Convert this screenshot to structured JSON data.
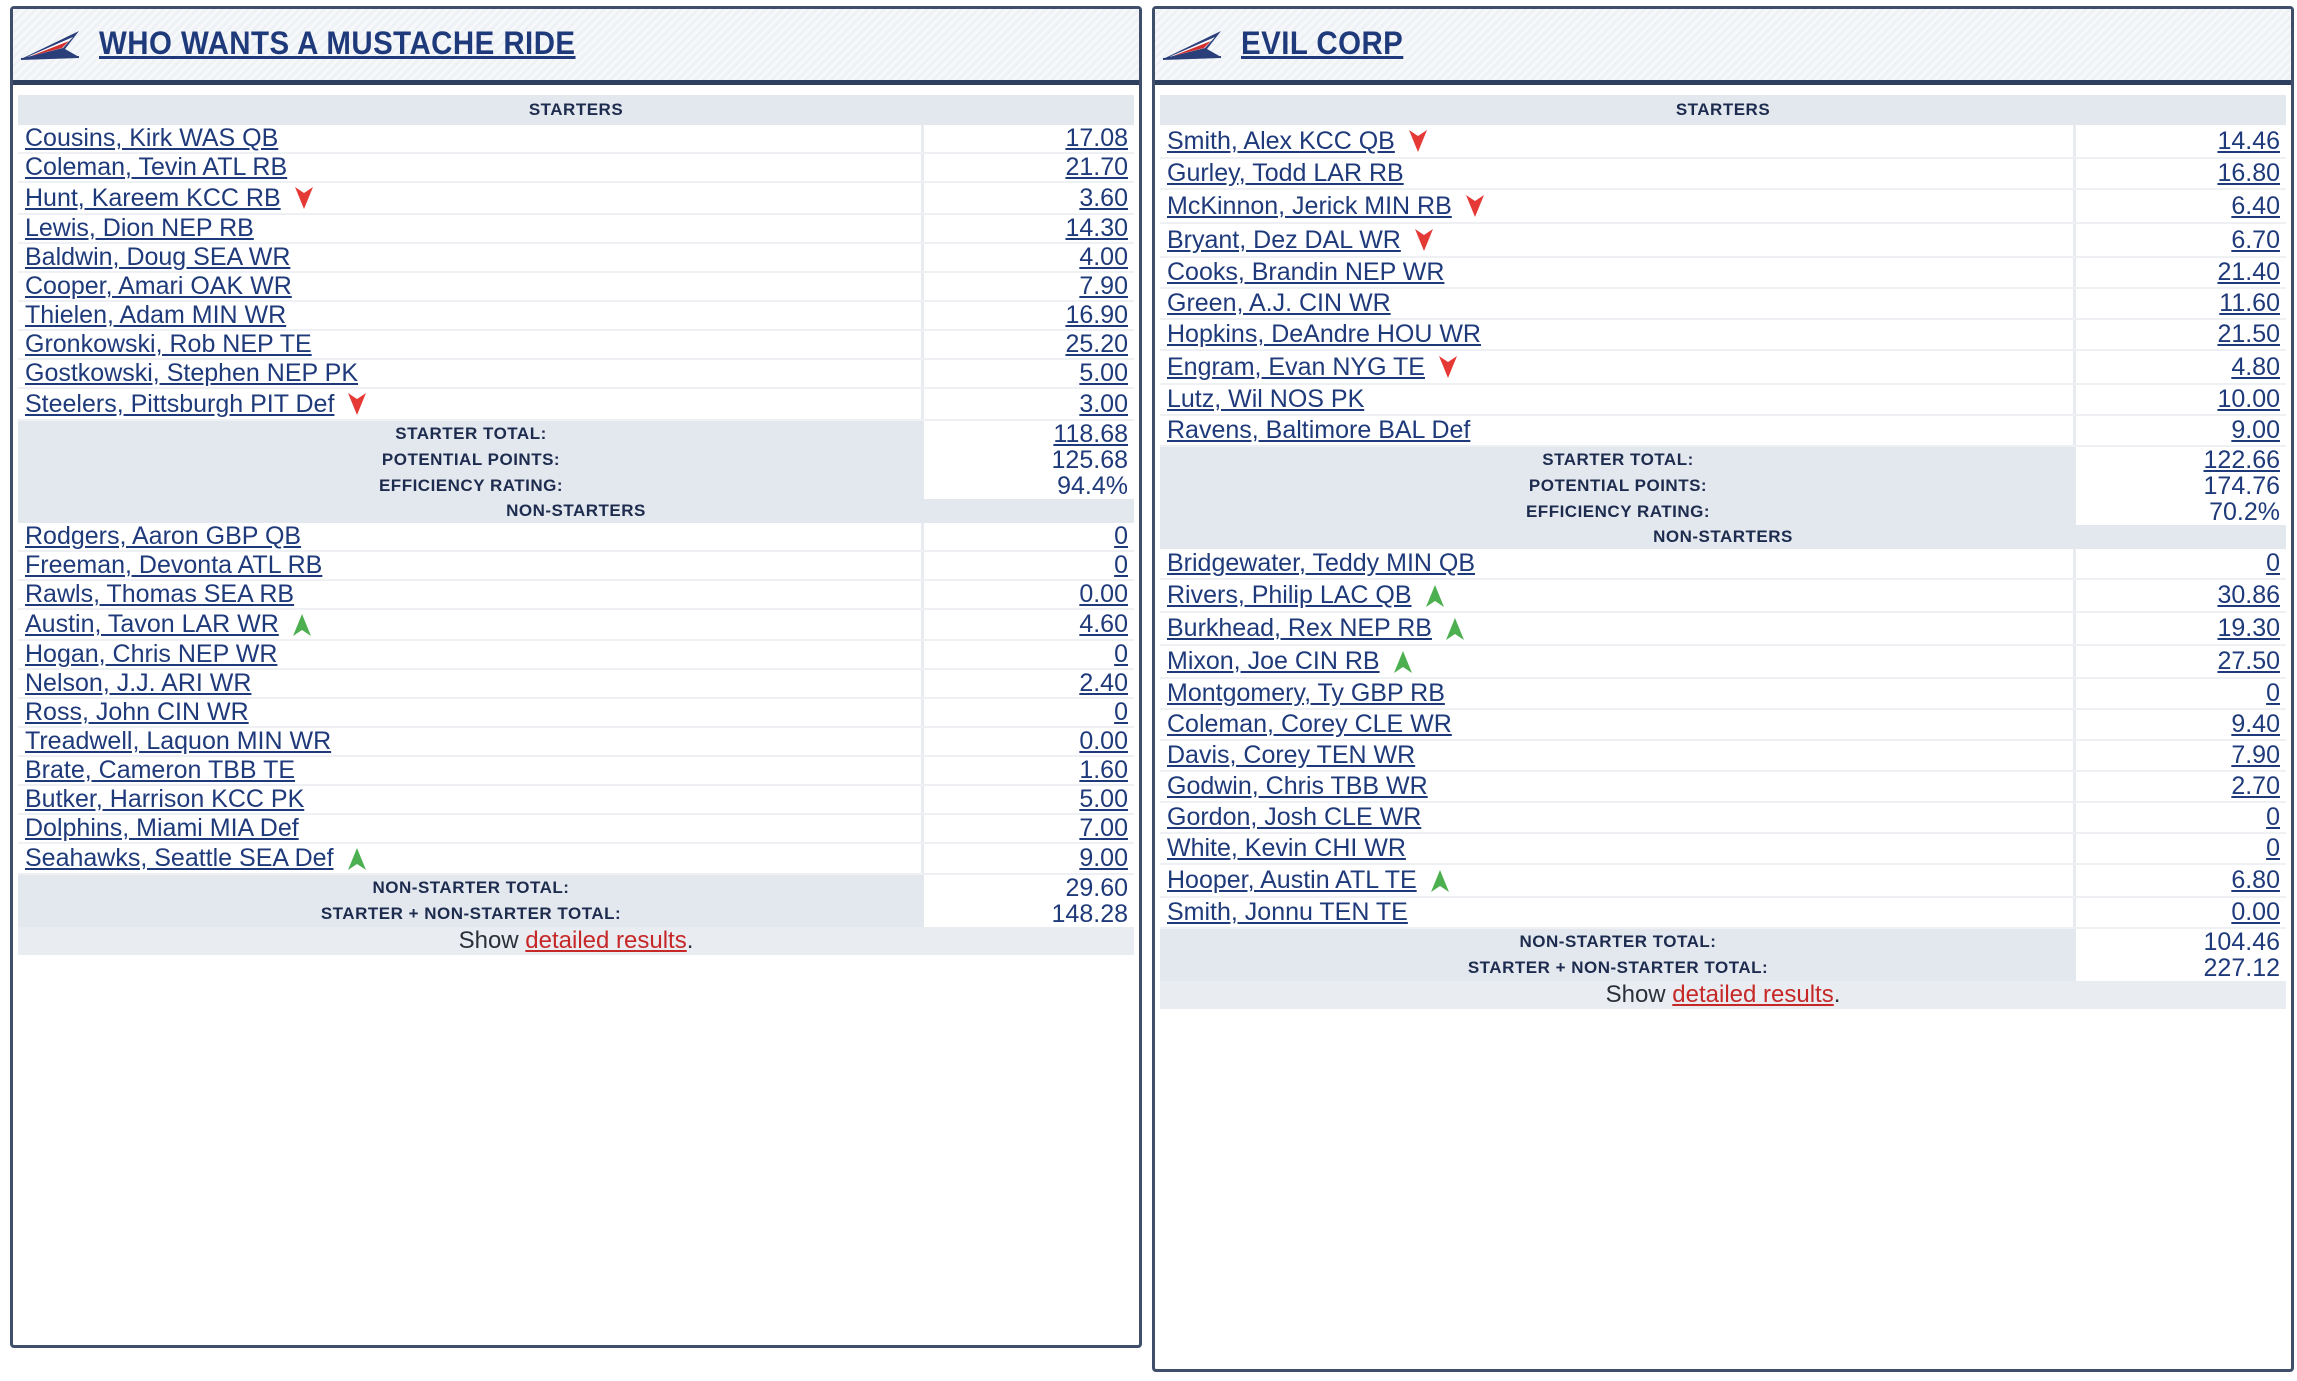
{
  "left": {
    "team_name": "WHO WANTS A MUSTACHE RIDE",
    "starters_label": "STARTERS",
    "starters": [
      {
        "name": "Cousins, Kirk WAS QB",
        "pts": "17.08",
        "trend": ""
      },
      {
        "name": "Coleman, Tevin ATL RB",
        "pts": "21.70",
        "trend": ""
      },
      {
        "name": "Hunt, Kareem KCC RB",
        "pts": "3.60",
        "trend": "down"
      },
      {
        "name": "Lewis, Dion NEP RB",
        "pts": "14.30",
        "trend": ""
      },
      {
        "name": "Baldwin, Doug SEA WR",
        "pts": "4.00",
        "trend": ""
      },
      {
        "name": "Cooper, Amari OAK WR",
        "pts": "7.90",
        "trend": ""
      },
      {
        "name": "Thielen, Adam MIN WR",
        "pts": "16.90",
        "trend": ""
      },
      {
        "name": "Gronkowski, Rob NEP TE",
        "pts": "25.20",
        "trend": ""
      },
      {
        "name": "Gostkowski, Stephen NEP PK",
        "pts": "5.00",
        "trend": ""
      },
      {
        "name": "Steelers, Pittsburgh PIT Def",
        "pts": "3.00",
        "trend": "down"
      }
    ],
    "starter_total_label": "STARTER TOTAL:",
    "starter_total": "118.68",
    "potential_label": "POTENTIAL POINTS:",
    "potential": "125.68",
    "efficiency_label": "EFFICIENCY RATING:",
    "efficiency": "94.4%",
    "nonstarters_label": "NON-STARTERS",
    "nonstarters": [
      {
        "name": "Rodgers, Aaron GBP QB",
        "pts": "0",
        "trend": ""
      },
      {
        "name": "Freeman, Devonta ATL RB",
        "pts": "0",
        "trend": ""
      },
      {
        "name": "Rawls, Thomas SEA RB",
        "pts": "0.00",
        "trend": ""
      },
      {
        "name": "Austin, Tavon LAR WR",
        "pts": "4.60",
        "trend": "up"
      },
      {
        "name": "Hogan, Chris NEP WR",
        "pts": "0",
        "trend": ""
      },
      {
        "name": "Nelson, J.J. ARI WR",
        "pts": "2.40",
        "trend": ""
      },
      {
        "name": "Ross, John CIN WR",
        "pts": "0",
        "trend": ""
      },
      {
        "name": "Treadwell, Laquon MIN WR",
        "pts": "0.00",
        "trend": ""
      },
      {
        "name": "Brate, Cameron TBB TE",
        "pts": "1.60",
        "trend": ""
      },
      {
        "name": "Butker, Harrison KCC PK",
        "pts": "5.00",
        "trend": ""
      },
      {
        "name": "Dolphins, Miami MIA Def",
        "pts": "7.00",
        "trend": ""
      },
      {
        "name": "Seahawks, Seattle SEA Def",
        "pts": "9.00",
        "trend": "up"
      }
    ],
    "nonstarter_total_label": "NON-STARTER TOTAL:",
    "nonstarter_total": "29.60",
    "combined_label": "STARTER + NON-STARTER TOTAL:",
    "combined": "148.28",
    "show_prefix": "Show ",
    "show_link": "detailed results",
    "show_suffix": "."
  },
  "right": {
    "team_name": "EVIL CORP",
    "starters_label": "STARTERS",
    "starters": [
      {
        "name": "Smith, Alex KCC QB",
        "pts": "14.46",
        "trend": "down"
      },
      {
        "name": "Gurley, Todd LAR RB",
        "pts": "16.80",
        "trend": ""
      },
      {
        "name": "McKinnon, Jerick MIN RB",
        "pts": "6.40",
        "trend": "down"
      },
      {
        "name": "Bryant, Dez DAL WR",
        "pts": "6.70",
        "trend": "down"
      },
      {
        "name": "Cooks, Brandin NEP WR",
        "pts": "21.40",
        "trend": ""
      },
      {
        "name": "Green, A.J. CIN WR",
        "pts": "11.60",
        "trend": ""
      },
      {
        "name": "Hopkins, DeAndre HOU WR",
        "pts": "21.50",
        "trend": ""
      },
      {
        "name": "Engram, Evan NYG TE",
        "pts": "4.80",
        "trend": "down"
      },
      {
        "name": "Lutz, Wil NOS PK",
        "pts": "10.00",
        "trend": ""
      },
      {
        "name": "Ravens, Baltimore BAL Def",
        "pts": "9.00",
        "trend": ""
      }
    ],
    "starter_total_label": "STARTER TOTAL:",
    "starter_total": "122.66",
    "potential_label": "POTENTIAL POINTS:",
    "potential": "174.76",
    "efficiency_label": "EFFICIENCY RATING:",
    "efficiency": "70.2%",
    "nonstarters_label": "NON-STARTERS",
    "nonstarters": [
      {
        "name": "Bridgewater, Teddy MIN QB",
        "pts": "0",
        "trend": ""
      },
      {
        "name": "Rivers, Philip LAC QB",
        "pts": "30.86",
        "trend": "up"
      },
      {
        "name": "Burkhead, Rex NEP RB",
        "pts": "19.30",
        "trend": "up"
      },
      {
        "name": "Mixon, Joe CIN RB",
        "pts": "27.50",
        "trend": "up"
      },
      {
        "name": "Montgomery, Ty GBP RB",
        "pts": "0",
        "trend": ""
      },
      {
        "name": "Coleman, Corey CLE WR",
        "pts": "9.40",
        "trend": ""
      },
      {
        "name": "Davis, Corey TEN WR",
        "pts": "7.90",
        "trend": ""
      },
      {
        "name": "Godwin, Chris TBB WR",
        "pts": "2.70",
        "trend": ""
      },
      {
        "name": "Gordon, Josh CLE WR",
        "pts": "0",
        "trend": ""
      },
      {
        "name": "White, Kevin CHI WR",
        "pts": "0",
        "trend": ""
      },
      {
        "name": "Hooper, Austin ATL TE",
        "pts": "6.80",
        "trend": "up"
      },
      {
        "name": "Smith, Jonnu TEN TE",
        "pts": "0.00",
        "trend": ""
      }
    ],
    "nonstarter_total_label": "NON-STARTER TOTAL:",
    "nonstarter_total": "104.46",
    "combined_label": "STARTER + NON-STARTER TOTAL:",
    "combined": "227.12",
    "show_prefix": "Show ",
    "show_link": "detailed results",
    "show_suffix": "."
  },
  "colors": {
    "down_arrow": "#e53935",
    "up_arrow": "#4caf50",
    "link": "#1f3a7a",
    "detail_link": "#c62828"
  },
  "icons": {
    "logo": "flag-logo-icon",
    "down": "arrow-down-icon",
    "up": "arrow-up-icon"
  }
}
